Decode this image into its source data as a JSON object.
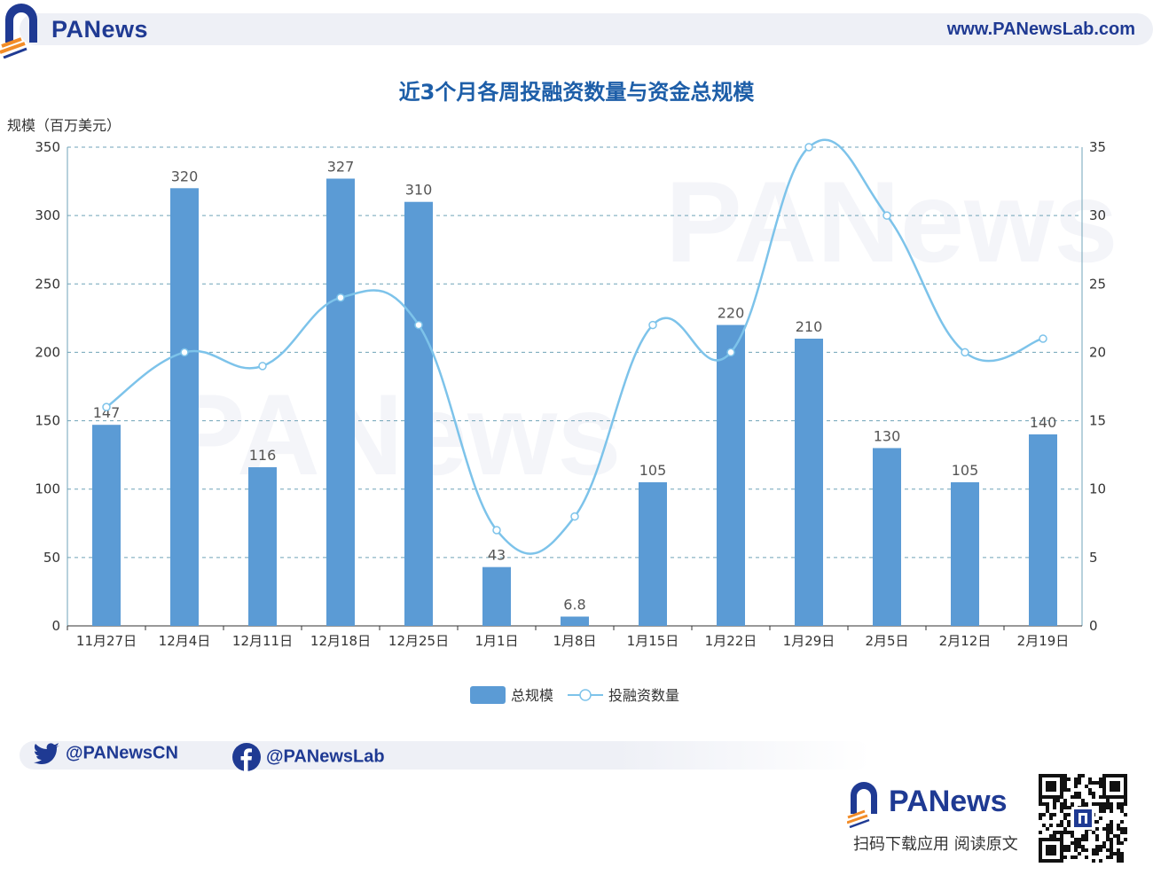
{
  "header": {
    "brand": "PANews",
    "url": "www.PANewsLab.com"
  },
  "title": "近3个月各周投融资数量与资金总规模",
  "chart_data": {
    "type": "bar",
    "title": "近3个月各周投融资数量与资金总规模",
    "ylabel": "规模（百万美元）",
    "categories": [
      "11月27日",
      "12月4日",
      "12月11日",
      "12月18日",
      "12月25日",
      "1月1日",
      "1月8日",
      "1月15日",
      "1月22日",
      "1月29日",
      "2月5日",
      "2月12日",
      "2月19日"
    ],
    "ylim": [
      0,
      350
    ],
    "yticks": [
      0,
      50,
      100,
      150,
      200,
      250,
      300,
      350
    ],
    "y2lim": [
      0,
      35
    ],
    "y2ticks": [
      0,
      5,
      10,
      15,
      20,
      25,
      30,
      35
    ],
    "grid": true,
    "legend_position": "bottom",
    "series": [
      {
        "name": "总规模",
        "type": "bar",
        "axis": "left",
        "color": "#5b9bd5",
        "values": [
          147,
          320,
          116,
          327,
          310,
          43,
          6.8,
          105,
          220,
          210,
          130,
          105,
          140
        ],
        "labels": [
          "147",
          "320",
          "116",
          "327",
          "310",
          "43",
          "6.8",
          "105",
          "220",
          "210",
          "130",
          "105",
          "140"
        ]
      },
      {
        "name": "投融资数量",
        "type": "line",
        "axis": "right",
        "color": "#7dc3ea",
        "values": [
          16,
          20,
          19,
          24,
          22,
          7,
          8,
          22,
          20,
          35,
          30,
          20,
          21
        ]
      }
    ]
  },
  "footer": {
    "twitter": "@PANewsCN",
    "facebook": "@PANewsLab",
    "brand": "PANews",
    "caption": "扫码下载应用  阅读原文"
  },
  "colors": {
    "brand": "#1f3a93",
    "accent": "#f28c28",
    "bar": "#5b9bd5",
    "line": "#7dc3ea",
    "title": "#1d5ea8"
  },
  "icons": [
    "panews-logo-icon",
    "twitter-icon",
    "facebook-icon",
    "qr-code-icon"
  ]
}
